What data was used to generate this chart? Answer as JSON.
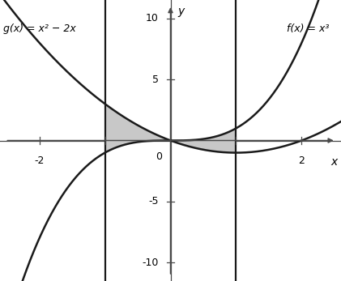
{
  "xlim": [
    -2.6,
    2.6
  ],
  "ylim": [
    -11.5,
    11.5
  ],
  "xticks": [
    -2,
    -1,
    1,
    2
  ],
  "xtick_labels_show": [
    "-2",
    "",
    "",
    "2"
  ],
  "yticks": [
    -10,
    -5,
    5,
    10
  ],
  "ytick_labels_show": [
    "-10",
    "-5",
    "5",
    "10"
  ],
  "xlabel": "x",
  "ylabel": "y",
  "vline1_x": -1.0,
  "vline2_x": 1.0,
  "label_gx": "g(x) = x² − 2x",
  "label_fx": "f(x) = x³",
  "shade_color": "#c8c8c8",
  "line_color": "#1a1a1a",
  "axis_color": "#4a4a4a",
  "fig_width": 4.21,
  "fig_height": 3.47,
  "dpi": 100
}
